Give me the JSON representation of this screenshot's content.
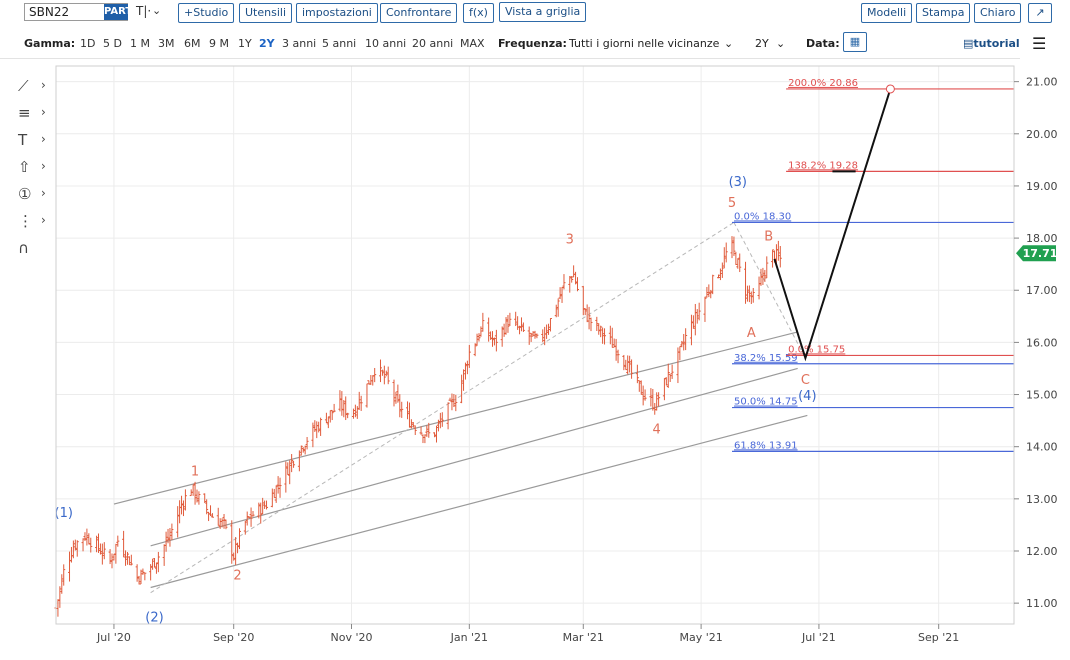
{
  "toolbar": {
    "symbol": "SBN22",
    "part_label": "PART",
    "compare_glyph": "T|·",
    "dropdown_glyph": "⌄",
    "buttons": {
      "studio": "+Studio",
      "utensili": "Utensili",
      "impostazioni": "impostazioni",
      "confrontare": "Confrontare",
      "fx": "f(x)",
      "vista": "Vista a griglia",
      "modelli": "Modelli",
      "stampa": "Stampa",
      "chiaro": "Chiaro",
      "expand": "↗"
    }
  },
  "range_bar": {
    "gamma_label": "Gamma:",
    "ranges": [
      "1D",
      "5 D",
      "1 M",
      "3M",
      "6M",
      "9 M",
      "1Y",
      "2Y",
      "3 anni",
      "5 anni",
      "10 anni",
      "20 anni",
      "MAX"
    ],
    "active_range": "2Y",
    "freq_label": "Frequenza:",
    "freq_value": "Tutti i giorni nelle vicinanze",
    "period_value": "2Y",
    "data_label": "Data:",
    "tutorial_label": "tutorial",
    "menu_icon": "hamburger-icon"
  },
  "drawing_tools": [
    "line-tool-icon",
    "fib-tool-icon",
    "text-tool-icon",
    "arrow-shape-icon",
    "counter-tool-icon",
    "pattern-tool-icon",
    "magnet-icon"
  ],
  "colors": {
    "candle": "#e05a3a",
    "wave_red": "#e0705a",
    "wave_blue": "#3a68c9",
    "fib_blue": "#4a68d8",
    "fib_red": "#e05050",
    "channel": "#9a9a9a",
    "price_badge": "#20a050"
  },
  "chart_data": {
    "type": "candlestick",
    "symbol": "SBN22",
    "x_ticks": [
      "Jul '20",
      "Sep '20",
      "Nov '20",
      "Jan '21",
      "Mar '21",
      "May '21",
      "Jul '21",
      "Sep '21"
    ],
    "y_ticks": [
      "11.00",
      "12.00",
      "13.00",
      "14.00",
      "15.00",
      "16.00",
      "17.00",
      "18.00",
      "19.00",
      "20.00",
      "21.00"
    ],
    "ylim": [
      10.6,
      21.3
    ],
    "xlim": [
      "2020-06-01",
      "2021-10-10"
    ],
    "last_price": "17.71",
    "close_path": [
      [
        "2020-06-01",
        10.9
      ],
      [
        "2020-06-05",
        11.6
      ],
      [
        "2020-06-10",
        12.1
      ],
      [
        "2020-06-16",
        12.3
      ],
      [
        "2020-06-22",
        12.1
      ],
      [
        "2020-06-29",
        11.8
      ],
      [
        "2020-07-03",
        12.2
      ],
      [
        "2020-07-08",
        11.9
      ],
      [
        "2020-07-13",
        11.5
      ],
      [
        "2020-07-18",
        11.6
      ],
      [
        "2020-07-24",
        11.9
      ],
      [
        "2020-07-30",
        12.3
      ],
      [
        "2020-08-05",
        12.9
      ],
      [
        "2020-08-10",
        13.2
      ],
      [
        "2020-08-14",
        13.0
      ],
      [
        "2020-08-20",
        12.7
      ],
      [
        "2020-08-27",
        12.5
      ],
      [
        "2020-09-01",
        11.9
      ],
      [
        "2020-09-06",
        12.5
      ],
      [
        "2020-09-11",
        12.7
      ],
      [
        "2020-09-18",
        12.9
      ],
      [
        "2020-09-26",
        13.4
      ],
      [
        "2020-10-04",
        13.9
      ],
      [
        "2020-10-12",
        14.3
      ],
      [
        "2020-10-20",
        14.6
      ],
      [
        "2020-10-26",
        14.8
      ],
      [
        "2020-11-01",
        14.6
      ],
      [
        "2020-11-07",
        15.0
      ],
      [
        "2020-11-13",
        15.5
      ],
      [
        "2020-11-19",
        15.3
      ],
      [
        "2020-11-25",
        14.8
      ],
      [
        "2020-12-01",
        14.5
      ],
      [
        "2020-12-07",
        14.3
      ],
      [
        "2020-12-13",
        14.2
      ],
      [
        "2020-12-19",
        14.6
      ],
      [
        "2020-12-26",
        15.0
      ],
      [
        "2021-01-01",
        15.8
      ],
      [
        "2021-01-08",
        16.3
      ],
      [
        "2021-01-14",
        16.0
      ],
      [
        "2021-01-21",
        16.4
      ],
      [
        "2021-01-29",
        16.2
      ],
      [
        "2021-02-06",
        16.0
      ],
      [
        "2021-02-13",
        16.5
      ],
      [
        "2021-02-20",
        17.2
      ],
      [
        "2021-02-24",
        17.3
      ],
      [
        "2021-03-01",
        16.6
      ],
      [
        "2021-03-07",
        16.3
      ],
      [
        "2021-03-13",
        16.1
      ],
      [
        "2021-03-20",
        15.8
      ],
      [
        "2021-03-26",
        15.4
      ],
      [
        "2021-04-01",
        15.0
      ],
      [
        "2021-04-07",
        14.8
      ],
      [
        "2021-04-12",
        15.2
      ],
      [
        "2021-04-19",
        15.7
      ],
      [
        "2021-04-24",
        16.2
      ],
      [
        "2021-04-30",
        16.6
      ],
      [
        "2021-05-06",
        17.1
      ],
      [
        "2021-05-11",
        17.4
      ],
      [
        "2021-05-16",
        17.9
      ],
      [
        "2021-05-20",
        17.5
      ],
      [
        "2021-05-24",
        17.0
      ],
      [
        "2021-05-29",
        16.8
      ],
      [
        "2021-06-02",
        17.3
      ],
      [
        "2021-06-07",
        17.7
      ],
      [
        "2021-06-11",
        17.6
      ]
    ],
    "channels": [
      {
        "start": [
          "2020-07-01",
          12.9
        ],
        "end": [
          "2021-06-20",
          16.2
        ]
      },
      {
        "start": [
          "2020-07-20",
          12.1
        ],
        "end": [
          "2021-06-20",
          15.5
        ]
      },
      {
        "start": [
          "2020-07-20",
          11.3
        ],
        "end": [
          "2021-06-25",
          14.6
        ]
      }
    ],
    "dashed_lines": [
      {
        "start": [
          "2020-07-20",
          11.2
        ],
        "end": [
          "2021-05-18",
          18.3
        ]
      },
      {
        "start": [
          "2021-05-18",
          18.3
        ],
        "end": [
          "2021-06-24",
          15.7
        ]
      }
    ],
    "projection": [
      [
        "2021-06-08",
        17.6
      ],
      [
        "2021-06-24",
        15.7
      ],
      [
        "2021-08-07",
        20.86
      ]
    ],
    "wave_labels": [
      {
        "text": "(1)",
        "x": "2020-06-05",
        "y": 12.65,
        "color": "blue"
      },
      {
        "text": "(2)",
        "x": "2020-07-22",
        "y": 10.65,
        "color": "blue"
      },
      {
        "text": "1",
        "x": "2020-08-12",
        "y": 13.45,
        "color": "red"
      },
      {
        "text": "2",
        "x": "2020-09-03",
        "y": 11.45,
        "color": "red"
      },
      {
        "text": "3",
        "x": "2021-02-22",
        "y": 17.9,
        "color": "red"
      },
      {
        "text": "4",
        "x": "2021-04-08",
        "y": 14.25,
        "color": "red"
      },
      {
        "text": "(3)",
        "x": "2021-05-20",
        "y": 19.0,
        "color": "blue"
      },
      {
        "text": "5",
        "x": "2021-05-17",
        "y": 18.6,
        "color": "red"
      },
      {
        "text": "B",
        "x": "2021-06-05",
        "y": 17.95,
        "color": "red"
      },
      {
        "text": "A",
        "x": "2021-05-27",
        "y": 16.1,
        "color": "red"
      },
      {
        "text": "C",
        "x": "2021-06-24",
        "y": 15.2,
        "color": "red"
      },
      {
        "text": "(4)",
        "x": "2021-06-25",
        "y": 14.9,
        "color": "blue"
      }
    ],
    "fib_levels": [
      {
        "label": "0.0% 18.30",
        "value": 18.3,
        "color": "blue"
      },
      {
        "label": "38.2% 15.59",
        "value": 15.59,
        "color": "blue"
      },
      {
        "label": "50.0% 14.75",
        "value": 14.75,
        "color": "blue"
      },
      {
        "label": "61.8% 13.91",
        "value": 13.91,
        "color": "blue"
      },
      {
        "label": "200.0% 20.86",
        "value": 20.86,
        "color": "red"
      },
      {
        "label": "138.2% 19.28",
        "value": 19.28,
        "color": "red"
      },
      {
        "label": "0.0% 15.75",
        "value": 15.75,
        "color": "red"
      }
    ]
  }
}
